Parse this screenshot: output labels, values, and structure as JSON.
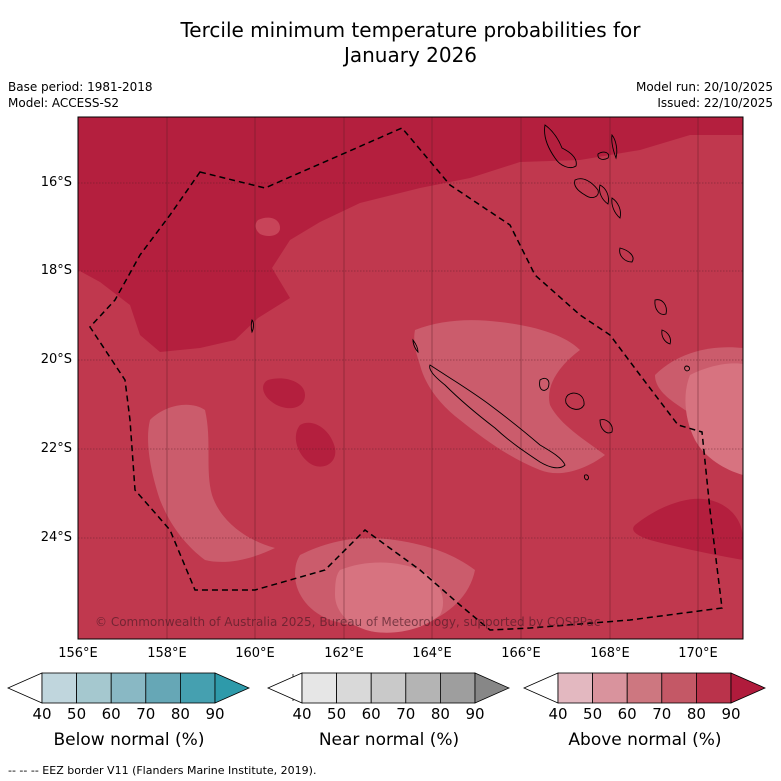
{
  "title_line1": "Tercile minimum temperature probabilities for",
  "title_line2": "January 2026",
  "base_period": "Base period: 1981-2018",
  "model": "Model: ACCESS-S2",
  "model_run": "Model run: 20/10/2025",
  "issued": "Issued: 22/10/2025",
  "copyright": "© Commonwealth of Australia 2025, Bureau of Meteorology, supported by COSPPac",
  "lat_labels": [
    "16°S",
    "18°S",
    "20°S",
    "22°S",
    "24°S"
  ],
  "lon_labels": [
    "156°E",
    "158°E",
    "160°E",
    "162°E",
    "164°E",
    "166°E",
    "168°E",
    "170°E"
  ],
  "colorbars": [
    {
      "title": "Below normal (%)",
      "ticks": [
        "40",
        "50",
        "60",
        "70",
        "80",
        "90"
      ],
      "colors": [
        "#ffffff",
        "#c0d6dd",
        "#a5c8cf",
        "#89b8c4",
        "#66a7b6",
        "#45a0b0",
        "#2e9aaa"
      ]
    },
    {
      "title": "Near normal (%)",
      "ticks": [
        "40",
        "50",
        "60",
        "70",
        "80",
        "90"
      ],
      "colors": [
        "#ffffff",
        "#e6e6e6",
        "#d9d9d9",
        "#c9c9c9",
        "#b4b4b4",
        "#9e9e9e",
        "#878787"
      ]
    },
    {
      "title": "Above normal (%)",
      "ticks": [
        "40",
        "50",
        "60",
        "70",
        "80",
        "90"
      ],
      "colors": [
        "#ffffff",
        "#e3b8c0",
        "#d9939d",
        "#cd7780",
        "#c45866",
        "#ba334b",
        "#b01b3c"
      ]
    }
  ],
  "footer": "-- -- -- EEZ border V11 (Flanders Marine Institute, 2019)."
}
